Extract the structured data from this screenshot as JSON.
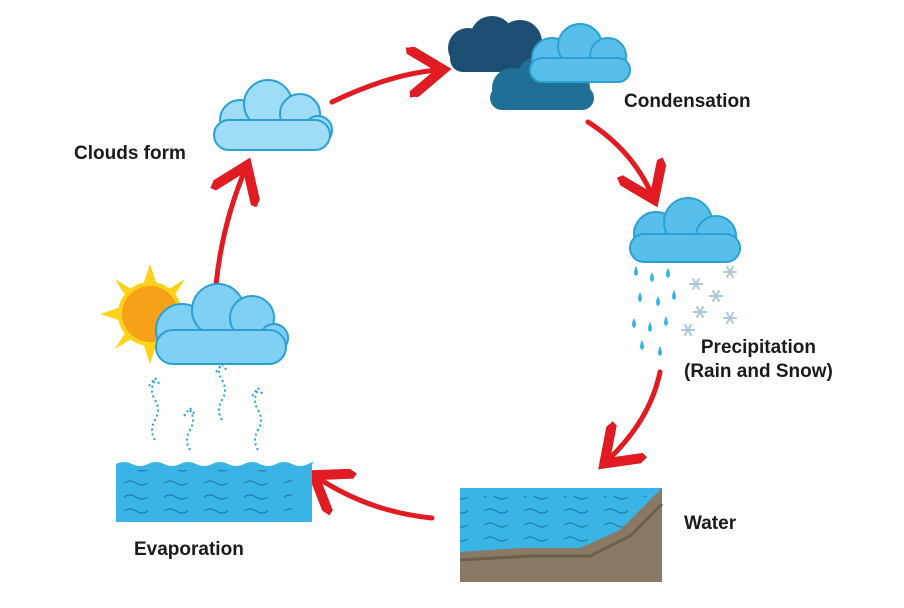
{
  "diagram": {
    "labels": {
      "condensation": "Condensation",
      "clouds_form": "Clouds form",
      "precipitation_line1": "Precipitation",
      "precipitation_line2": "(Rain and Snow)",
      "water": "Water",
      "evaporation": "Evaporation"
    },
    "colors": {
      "arrow": "#e11b22",
      "cloud_light": "#7fd0f3",
      "cloud_mid": "#2aa0d4",
      "cloud_dark": "#1d4f73",
      "cloud_darker": "#1f6f96",
      "water": "#3ab3e6",
      "ground": "#8a7a64",
      "sun": "#ffd21a",
      "snow": "#a9c9d9"
    }
  }
}
